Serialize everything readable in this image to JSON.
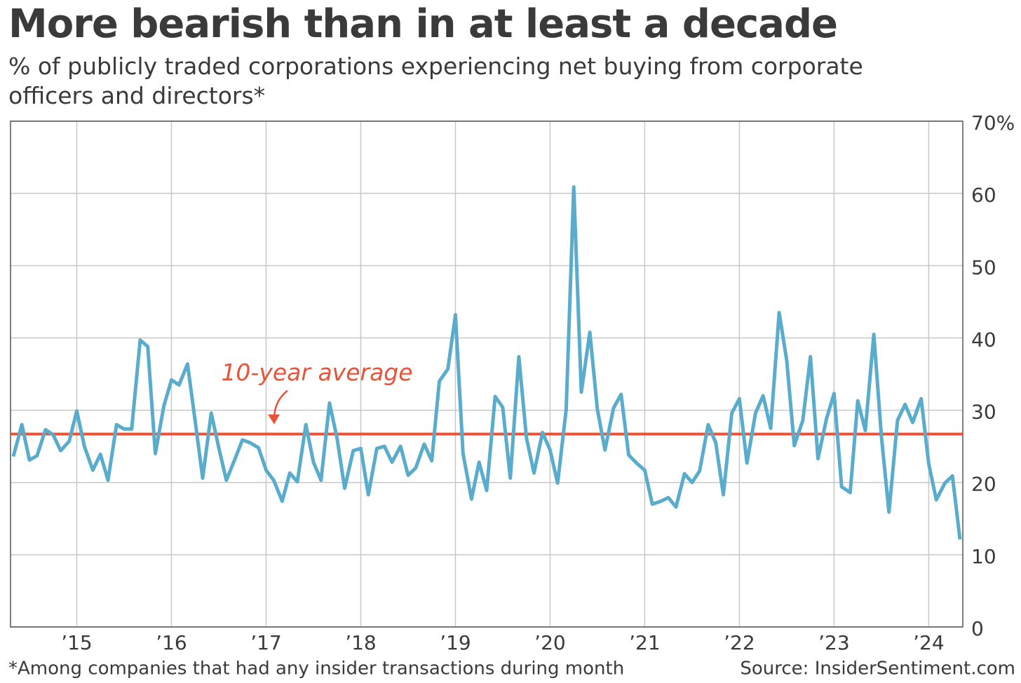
{
  "chart_data": {
    "type": "line",
    "title": "More bearish than in at least a decade",
    "subtitle": " % of publicly traded corporations experiencing net buying from corporate officers and directors*",
    "footnote": "*Among companies that had any insider transactions during month",
    "source": "Source: InsiderSentiment.com",
    "x": [
      2014.33,
      2014.42,
      2014.5,
      2014.58,
      2014.67,
      2014.75,
      2014.83,
      2014.92,
      2015,
      2015.08,
      2015.17,
      2015.25,
      2015.33,
      2015.42,
      2015.5,
      2015.58,
      2015.67,
      2015.75,
      2015.83,
      2015.92,
      2016,
      2016.08,
      2016.17,
      2016.25,
      2016.33,
      2016.42,
      2016.5,
      2016.58,
      2016.67,
      2016.75,
      2016.83,
      2016.92,
      2017,
      2017.08,
      2017.17,
      2017.25,
      2017.33,
      2017.42,
      2017.5,
      2017.58,
      2017.67,
      2017.75,
      2017.83,
      2017.92,
      2018,
      2018.08,
      2018.17,
      2018.25,
      2018.33,
      2018.42,
      2018.5,
      2018.58,
      2018.67,
      2018.75,
      2018.83,
      2018.92,
      2019,
      2019.08,
      2019.17,
      2019.25,
      2019.33,
      2019.42,
      2019.5,
      2019.58,
      2019.67,
      2019.75,
      2019.83,
      2019.92,
      2020,
      2020.08,
      2020.17,
      2020.25,
      2020.33,
      2020.42,
      2020.5,
      2020.58,
      2020.67,
      2020.75,
      2020.83,
      2020.92,
      2021,
      2021.08,
      2021.17,
      2021.25,
      2021.33,
      2021.42,
      2021.5,
      2021.58,
      2021.67,
      2021.75,
      2021.83,
      2021.92,
      2022,
      2022.08,
      2022.17,
      2022.25,
      2022.33,
      2022.42,
      2022.5,
      2022.58,
      2022.67,
      2022.75,
      2022.83,
      2022.92,
      2023,
      2023.08,
      2023.17,
      2023.25,
      2023.33,
      2023.42,
      2023.5,
      2023.58,
      2023.67,
      2023.75,
      2023.83,
      2023.92,
      2024,
      2024.08,
      2024.17,
      2024.25,
      2024.33
    ],
    "series": [
      {
        "color": "#5aaccc",
        "values": [
          23.6,
          28,
          23.1,
          23.7,
          27.3,
          26.6,
          24.4,
          25.7,
          29.9,
          25,
          21.7,
          23.9,
          20.3,
          28,
          27.4,
          27.4,
          39.7,
          38.8,
          24,
          30.6,
          34.2,
          33.5,
          36.4,
          28.6,
          20.6,
          29.6,
          24.8,
          20.3,
          23.2,
          25.9,
          25.5,
          24.8,
          21.7,
          20.3,
          17.4,
          21.3,
          20.1,
          28,
          22.8,
          20.3,
          31,
          26.1,
          19.2,
          24.4,
          24.7,
          18.3,
          24.7,
          25,
          22.8,
          25,
          21,
          22,
          25.3,
          23,
          34,
          35.7,
          43.2,
          24,
          17.7,
          22.8,
          18.9,
          31.9,
          30.4,
          20.6,
          37.4,
          26.2,
          21.3,
          26.9,
          24.5,
          19.9,
          30.1,
          60.9,
          32.5,
          40.8,
          30.1,
          24.5,
          30.3,
          32.2,
          23.8,
          22.6,
          21.7,
          17,
          17.4,
          17.9,
          16.6,
          21.2,
          20,
          21.6,
          28,
          25.5,
          18.3,
          29.6,
          31.6,
          22.7,
          29.6,
          32,
          27.5,
          43.5,
          36.9,
          25.1,
          28.6,
          37.4,
          23.3,
          28.8,
          32.3,
          19.4,
          18.6,
          31.3,
          27.2,
          40.5,
          26.4,
          15.9,
          28.6,
          30.8,
          28.3,
          31.6,
          22.6,
          17.6,
          19.9,
          20.9,
          12.1
        ]
      }
    ],
    "reference_line": {
      "value": 26.7,
      "label": "10-year average",
      "color": "#e8533a"
    },
    "xlim": [
      2014.3,
      2024.36
    ],
    "xticks": [
      {
        "value": 2015,
        "label": "’15"
      },
      {
        "value": 2016,
        "label": "’16"
      },
      {
        "value": 2017,
        "label": "’17"
      },
      {
        "value": 2018,
        "label": "’18"
      },
      {
        "value": 2019,
        "label": "’19"
      },
      {
        "value": 2020,
        "label": "’20"
      },
      {
        "value": 2021,
        "label": "’21"
      },
      {
        "value": 2022,
        "label": "’22"
      },
      {
        "value": 2023,
        "label": "’23"
      },
      {
        "value": 2024,
        "label": "’24"
      }
    ],
    "ylim": [
      0,
      70
    ],
    "yticks": [
      0,
      10,
      20,
      30,
      40,
      50,
      60,
      {
        "value": 70,
        "label": "70%"
      }
    ],
    "grid": true
  }
}
